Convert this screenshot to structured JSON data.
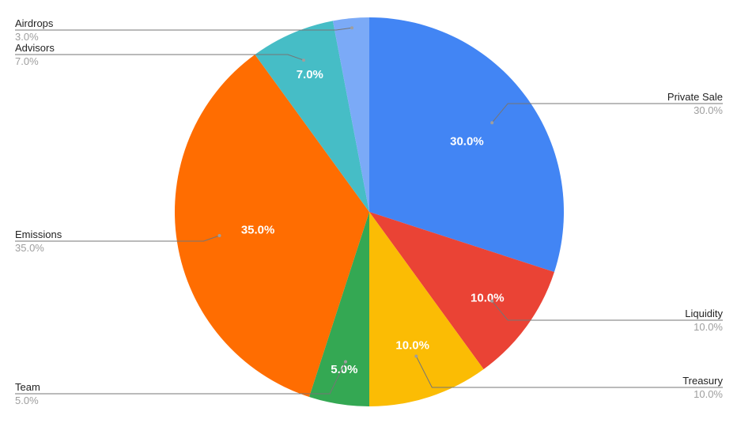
{
  "chart_data": {
    "type": "pie",
    "categories": [
      "Private Sale",
      "Liquidity",
      "Treasury",
      "Team",
      "Emissions",
      "Advisors",
      "Airdrops"
    ],
    "values": [
      30.0,
      10.0,
      10.0,
      5.0,
      35.0,
      7.0,
      3.0
    ],
    "slice_labels": [
      "30.0%",
      "10.0%",
      "10.0%",
      "5.0%",
      "35.0%",
      "7.0%",
      "3.0%"
    ],
    "legend_values": [
      "30.0%",
      "10.0%",
      "10.0%",
      "5.0%",
      "35.0%",
      "7.0%",
      "3.0%"
    ],
    "colors": [
      "#4285f4",
      "#ea4335",
      "#fbbc04",
      "#34a853",
      "#ff6d01",
      "#46bdc6",
      "#7baaf7"
    ],
    "start_angle_deg": 0,
    "direction": "clockwise",
    "legend": "external-labels"
  }
}
